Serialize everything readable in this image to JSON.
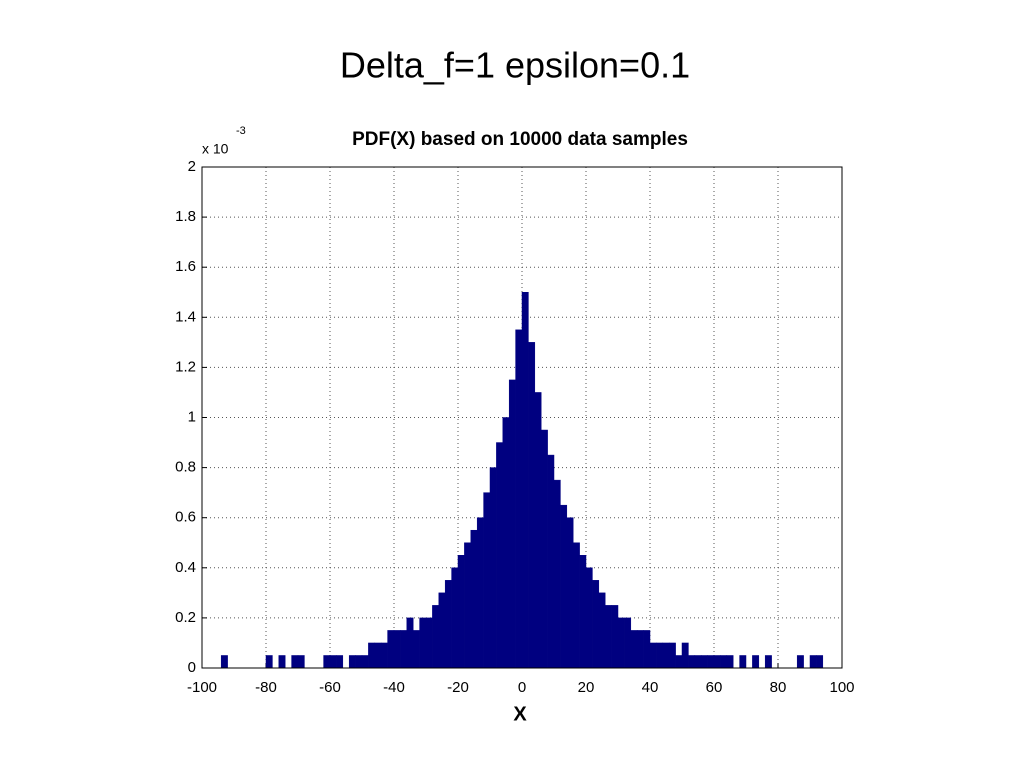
{
  "slide_title": "Delta_f=1  epsilon=0.1",
  "chart_data": {
    "type": "histogram",
    "title": "PDF(X) based on 10000 data samples",
    "x_label": "X",
    "y_multiplier": "x 10",
    "y_exponent": "-3",
    "color": "#000080",
    "grid": true,
    "bins": [
      -100,
      -98,
      -96,
      -94,
      -92,
      -90,
      -88,
      -86,
      -84,
      -82,
      -80,
      -78,
      -76,
      -74,
      -72,
      -70,
      -68,
      -66,
      -64,
      -62,
      -60,
      -58,
      -56,
      -54,
      -52,
      -50,
      -48,
      -46,
      -44,
      -42,
      -40,
      -38,
      -36,
      -34,
      -32,
      -30,
      -28,
      -26,
      -24,
      -22,
      -20,
      -18,
      -16,
      -14,
      -12,
      -10,
      -8,
      -6,
      -4,
      -2,
      0,
      2,
      4,
      6,
      8,
      10,
      12,
      14,
      16,
      18,
      20,
      22,
      24,
      26,
      28,
      30,
      32,
      34,
      36,
      38,
      40,
      42,
      44,
      46,
      48,
      50,
      52,
      54,
      56,
      58,
      60,
      62,
      64,
      66,
      68,
      70,
      72,
      74,
      76,
      78,
      80,
      82,
      84,
      86,
      88,
      90,
      92,
      94,
      96,
      98,
      100
    ],
    "values": [
      0,
      0,
      0,
      0.05,
      0,
      0,
      0,
      0,
      0,
      0,
      0.05,
      0,
      0.05,
      0,
      0.05,
      0.05,
      0,
      0,
      0,
      0.05,
      0.05,
      0.05,
      0,
      0.05,
      0.05,
      0.05,
      0.1,
      0.1,
      0.1,
      0.15,
      0.15,
      0.15,
      0.2,
      0.15,
      0.2,
      0.2,
      0.25,
      0.3,
      0.35,
      0.4,
      0.45,
      0.5,
      0.55,
      0.6,
      0.7,
      0.8,
      0.9,
      1.0,
      1.15,
      1.35,
      1.5,
      1.3,
      1.1,
      0.95,
      0.85,
      0.75,
      0.65,
      0.6,
      0.5,
      0.45,
      0.4,
      0.35,
      0.3,
      0.25,
      0.25,
      0.2,
      0.2,
      0.15,
      0.15,
      0.15,
      0.1,
      0.1,
      0.1,
      0.1,
      0.05,
      0.1,
      0.05,
      0.05,
      0.05,
      0.05,
      0.05,
      0.05,
      0.05,
      0,
      0.05,
      0,
      0.05,
      0,
      0.05,
      0,
      0,
      0,
      0,
      0.05,
      0,
      0.05,
      0.05,
      0,
      0,
      0
    ],
    "xlim": [
      -100,
      100
    ],
    "xticks": [
      -100,
      -80,
      -60,
      -40,
      -20,
      0,
      20,
      40,
      60,
      80,
      100
    ],
    "ylim": [
      0,
      2
    ],
    "yticks": [
      0,
      0.2,
      0.4,
      0.6,
      0.8,
      1,
      1.2,
      1.4,
      1.6,
      1.8,
      2
    ]
  }
}
